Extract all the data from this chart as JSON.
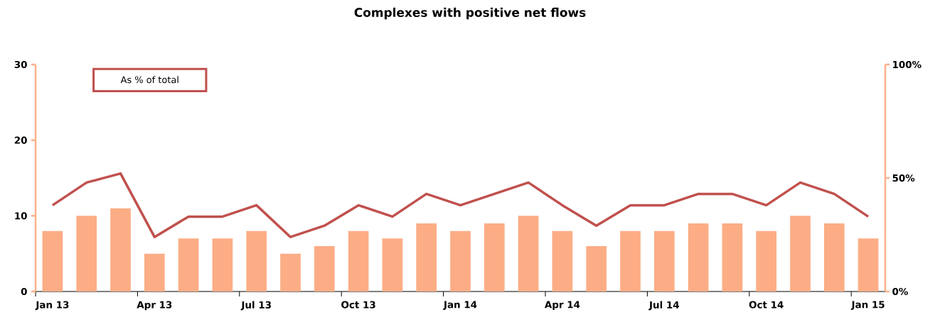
{
  "chart_data": {
    "type": "bar",
    "title": "Complexes with positive net flows",
    "categories": [
      "Jan 13",
      null,
      null,
      "Apr 13",
      null,
      null,
      "Jul 13",
      null,
      null,
      "Oct 13",
      null,
      null,
      "Jan 14",
      null,
      null,
      "Apr 14",
      null,
      null,
      "Jul 14",
      null,
      null,
      "Oct 14",
      null,
      null,
      "Jan 15"
    ],
    "series": [
      {
        "color": "#fcad85",
        "values": [
          8,
          10,
          11,
          5,
          7,
          7,
          8,
          5,
          6,
          8,
          7,
          9,
          8,
          9,
          10,
          8,
          6,
          8,
          8,
          9,
          9,
          8,
          10,
          9,
          7
        ]
      },
      {
        "type": "line",
        "name": "As % of total",
        "axis": "y2",
        "color": "#c0504d",
        "values": [
          38,
          48,
          52,
          24,
          33,
          33,
          38,
          24,
          29,
          38,
          33,
          43,
          38,
          43,
          48,
          38,
          29,
          38,
          38,
          43,
          43,
          38,
          48,
          43,
          33
        ]
      }
    ],
    "ylim": [
      0,
      30
    ],
    "yticks": [
      0,
      10,
      20,
      30
    ],
    "y2lim": [
      0,
      100
    ],
    "y2ticks": [
      {
        "value": 0,
        "label": "0%"
      },
      {
        "value": 50,
        "label": "50%"
      },
      {
        "value": 100,
        "label": "100%"
      }
    ],
    "legend": "top left",
    "marker": "none",
    "line_style": "solid"
  }
}
